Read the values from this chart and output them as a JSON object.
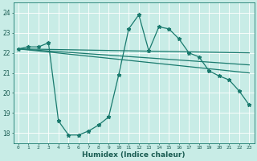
{
  "xlabel": "Humidex (Indice chaleur)",
  "ylabel": "",
  "xlim": [
    -0.5,
    23.5
  ],
  "ylim": [
    17.5,
    24.5
  ],
  "yticks": [
    18,
    19,
    20,
    21,
    22,
    23,
    24
  ],
  "xticks": [
    0,
    1,
    2,
    3,
    4,
    5,
    6,
    7,
    8,
    9,
    10,
    11,
    12,
    13,
    14,
    15,
    16,
    17,
    18,
    19,
    20,
    21,
    22,
    23
  ],
  "bg_color": "#c8ece6",
  "line_color": "#1a7a6e",
  "grid_color": "#ffffff",
  "series": [
    {
      "x": [
        0,
        1,
        2,
        3,
        4,
        5,
        6,
        7,
        8,
        9,
        10,
        11,
        12,
        13,
        14,
        15,
        16,
        17,
        18,
        19,
        20,
        21,
        22,
        23
      ],
      "y": [
        22.2,
        22.3,
        22.3,
        22.5,
        18.6,
        17.9,
        17.9,
        18.1,
        18.4,
        18.8,
        20.9,
        23.2,
        23.9,
        22.1,
        23.3,
        23.2,
        22.7,
        22.0,
        21.8,
        21.1,
        20.85,
        20.65,
        20.1,
        19.4
      ],
      "marker": "*",
      "markersize": 3.5,
      "linewidth": 0.9
    },
    {
      "x": [
        0,
        23
      ],
      "y": [
        22.2,
        21.0
      ],
      "marker": null,
      "markersize": 0,
      "linewidth": 0.9
    },
    {
      "x": [
        0,
        23
      ],
      "y": [
        22.2,
        21.4
      ],
      "marker": null,
      "markersize": 0,
      "linewidth": 0.9
    },
    {
      "x": [
        0,
        23
      ],
      "y": [
        22.2,
        22.0
      ],
      "marker": null,
      "markersize": 0,
      "linewidth": 0.9
    }
  ]
}
